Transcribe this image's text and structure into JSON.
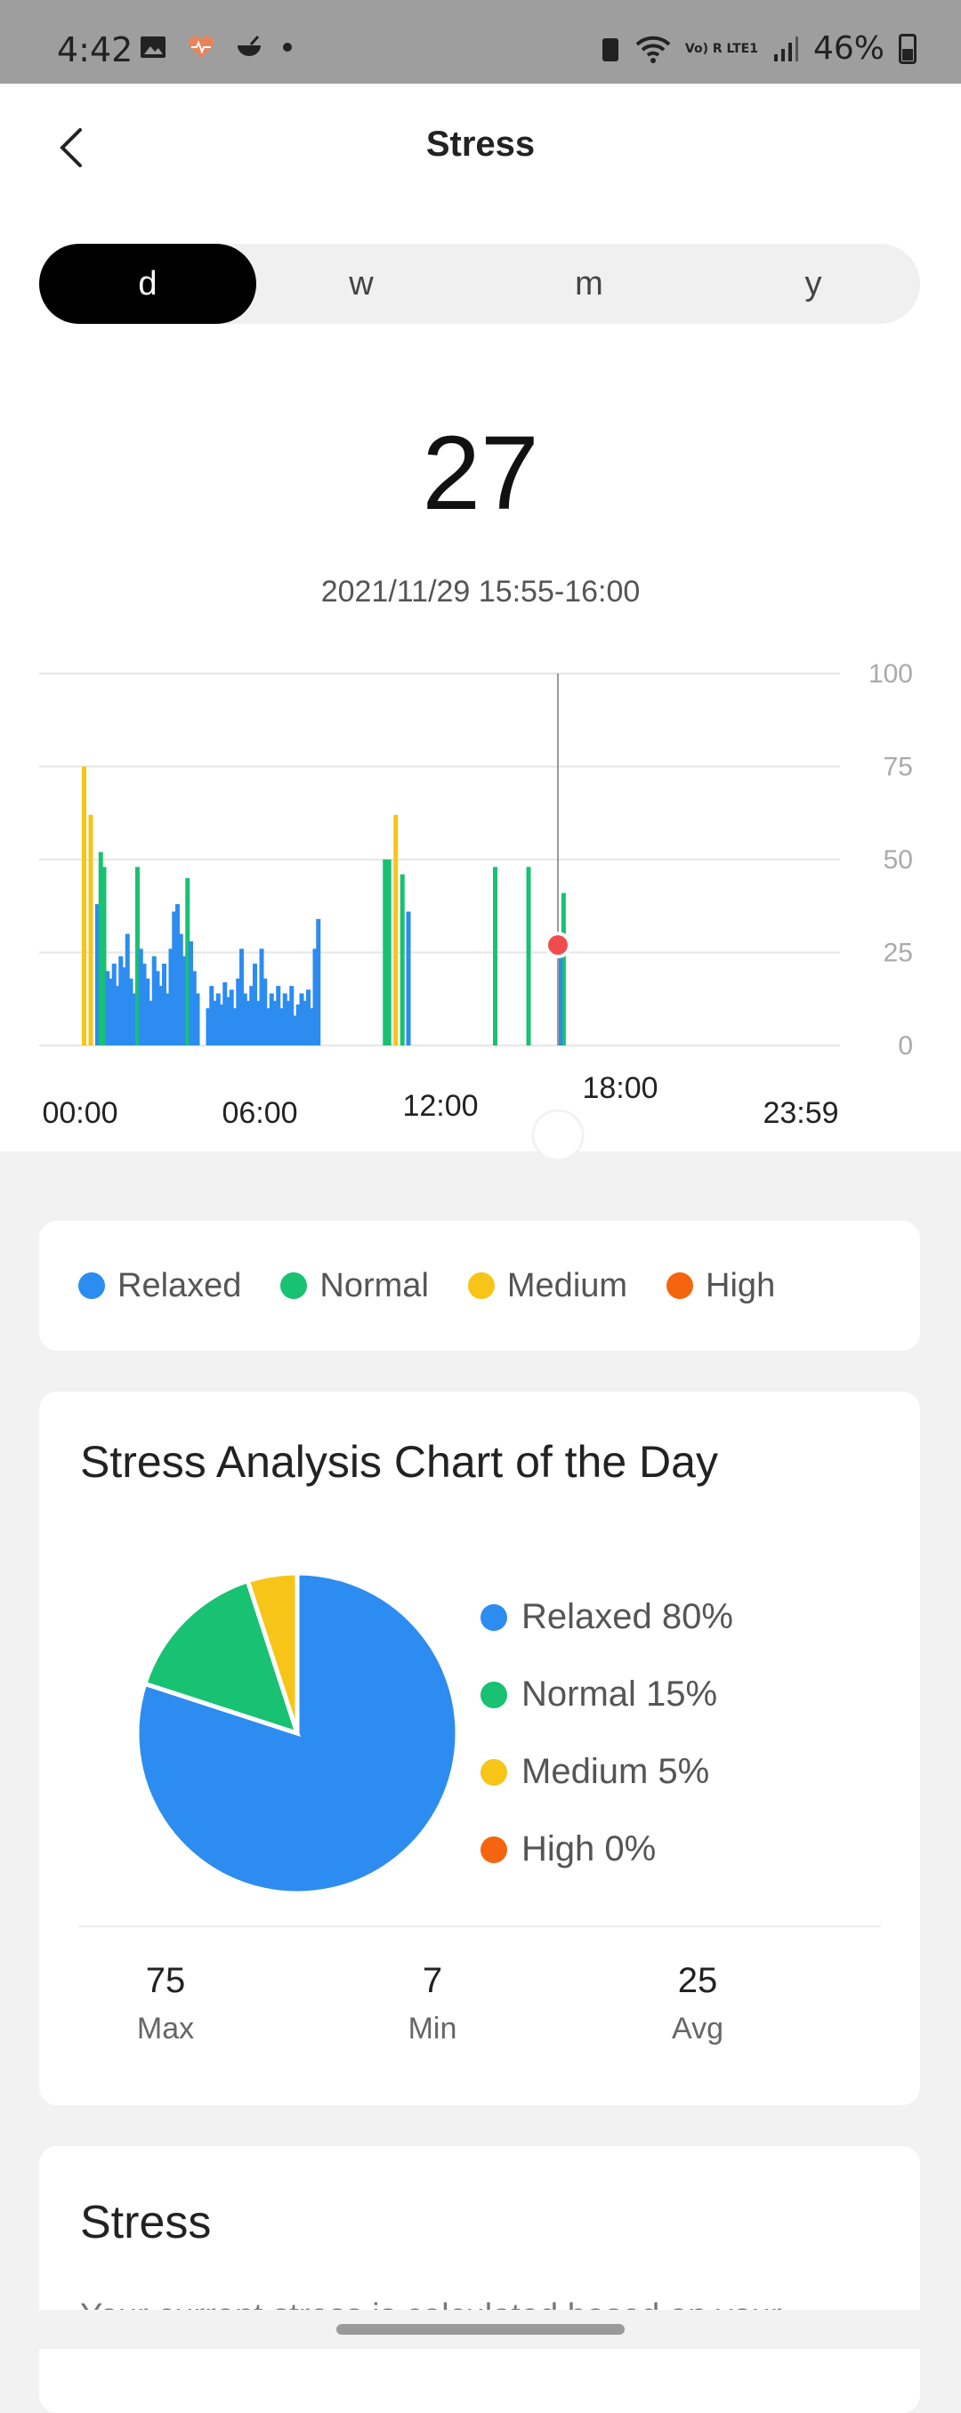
{
  "status_bar": {
    "time": "4:42",
    "network": "Vo) R LTE1",
    "battery": "46%"
  },
  "header": {
    "title": "Stress"
  },
  "tabs": [
    {
      "label": "d",
      "active": true
    },
    {
      "label": "w",
      "active": false
    },
    {
      "label": "m",
      "active": false
    },
    {
      "label": "y",
      "active": false
    }
  ],
  "current": {
    "value": "27",
    "time_range": "2021/11/29 15:55-16:00"
  },
  "chart_data": {
    "type": "bar",
    "y_ticks": [
      "100",
      "75",
      "50",
      "25",
      "0"
    ],
    "ylim": [
      0,
      100
    ],
    "x_tick_labels": [
      "00:00",
      "06:00",
      "12:00",
      "18:00",
      "23:59"
    ],
    "x_range_hours": [
      0,
      24
    ],
    "selected_point": {
      "time": "15:55",
      "value": 27
    },
    "colors": {
      "relaxed": "#2d8cf0",
      "normal": "#19c172",
      "medium": "#f7c518",
      "high": "#f5650f"
    },
    "bars": [
      {
        "t": 0.28,
        "v": 75,
        "level": "medium"
      },
      {
        "t": 0.48,
        "v": 62,
        "level": "medium"
      },
      {
        "t": 0.68,
        "v": 38,
        "level": "relaxed"
      },
      {
        "t": 0.78,
        "v": 52,
        "level": "normal"
      },
      {
        "t": 0.88,
        "v": 48,
        "level": "normal"
      },
      {
        "t": 0.98,
        "v": 20,
        "level": "relaxed"
      },
      {
        "t": 1.08,
        "v": 18,
        "level": "relaxed"
      },
      {
        "t": 1.18,
        "v": 22,
        "level": "relaxed"
      },
      {
        "t": 1.28,
        "v": 16,
        "level": "relaxed"
      },
      {
        "t": 1.38,
        "v": 24,
        "level": "relaxed"
      },
      {
        "t": 1.48,
        "v": 21,
        "level": "relaxed"
      },
      {
        "t": 1.58,
        "v": 30,
        "level": "relaxed"
      },
      {
        "t": 1.68,
        "v": 18,
        "level": "relaxed"
      },
      {
        "t": 1.78,
        "v": 14,
        "level": "relaxed"
      },
      {
        "t": 1.88,
        "v": 48,
        "level": "normal"
      },
      {
        "t": 1.98,
        "v": 26,
        "level": "relaxed"
      },
      {
        "t": 2.08,
        "v": 22,
        "level": "relaxed"
      },
      {
        "t": 2.18,
        "v": 18,
        "level": "relaxed"
      },
      {
        "t": 2.28,
        "v": 12,
        "level": "relaxed"
      },
      {
        "t": 2.38,
        "v": 24,
        "level": "relaxed"
      },
      {
        "t": 2.48,
        "v": 20,
        "level": "relaxed"
      },
      {
        "t": 2.58,
        "v": 16,
        "level": "relaxed"
      },
      {
        "t": 2.68,
        "v": 22,
        "level": "relaxed"
      },
      {
        "t": 2.78,
        "v": 14,
        "level": "relaxed"
      },
      {
        "t": 2.88,
        "v": 26,
        "level": "relaxed"
      },
      {
        "t": 2.98,
        "v": 36,
        "level": "relaxed"
      },
      {
        "t": 3.08,
        "v": 38,
        "level": "relaxed"
      },
      {
        "t": 3.18,
        "v": 30,
        "level": "relaxed"
      },
      {
        "t": 3.28,
        "v": 24,
        "level": "relaxed"
      },
      {
        "t": 3.38,
        "v": 45,
        "level": "normal"
      },
      {
        "t": 3.48,
        "v": 28,
        "level": "relaxed"
      },
      {
        "t": 3.58,
        "v": 20,
        "level": "relaxed"
      },
      {
        "t": 3.68,
        "v": 14,
        "level": "relaxed"
      },
      {
        "t": 4.0,
        "v": 10,
        "level": "relaxed"
      },
      {
        "t": 4.1,
        "v": 16,
        "level": "relaxed"
      },
      {
        "t": 4.2,
        "v": 12,
        "level": "relaxed"
      },
      {
        "t": 4.3,
        "v": 14,
        "level": "relaxed"
      },
      {
        "t": 4.4,
        "v": 11,
        "level": "relaxed"
      },
      {
        "t": 4.5,
        "v": 17,
        "level": "relaxed"
      },
      {
        "t": 4.6,
        "v": 13,
        "level": "relaxed"
      },
      {
        "t": 4.7,
        "v": 15,
        "level": "relaxed"
      },
      {
        "t": 4.8,
        "v": 10,
        "level": "relaxed"
      },
      {
        "t": 4.9,
        "v": 18,
        "level": "relaxed"
      },
      {
        "t": 5.0,
        "v": 26,
        "level": "relaxed"
      },
      {
        "t": 5.1,
        "v": 14,
        "level": "relaxed"
      },
      {
        "t": 5.2,
        "v": 12,
        "level": "relaxed"
      },
      {
        "t": 5.3,
        "v": 16,
        "level": "relaxed"
      },
      {
        "t": 5.4,
        "v": 22,
        "level": "relaxed"
      },
      {
        "t": 5.5,
        "v": 12,
        "level": "relaxed"
      },
      {
        "t": 5.6,
        "v": 26,
        "level": "relaxed"
      },
      {
        "t": 5.7,
        "v": 18,
        "level": "relaxed"
      },
      {
        "t": 5.8,
        "v": 10,
        "level": "relaxed"
      },
      {
        "t": 5.9,
        "v": 14,
        "level": "relaxed"
      },
      {
        "t": 6.0,
        "v": 12,
        "level": "relaxed"
      },
      {
        "t": 6.1,
        "v": 16,
        "level": "relaxed"
      },
      {
        "t": 6.2,
        "v": 10,
        "level": "relaxed"
      },
      {
        "t": 6.3,
        "v": 14,
        "level": "relaxed"
      },
      {
        "t": 6.4,
        "v": 12,
        "level": "relaxed"
      },
      {
        "t": 6.5,
        "v": 16,
        "level": "relaxed"
      },
      {
        "t": 6.6,
        "v": 8,
        "level": "relaxed"
      },
      {
        "t": 6.7,
        "v": 11,
        "level": "relaxed"
      },
      {
        "t": 6.8,
        "v": 14,
        "level": "relaxed"
      },
      {
        "t": 6.9,
        "v": 12,
        "level": "relaxed"
      },
      {
        "t": 7.0,
        "v": 15,
        "level": "relaxed"
      },
      {
        "t": 7.1,
        "v": 10,
        "level": "relaxed"
      },
      {
        "t": 7.2,
        "v": 26,
        "level": "relaxed"
      },
      {
        "t": 7.3,
        "v": 34,
        "level": "relaxed"
      },
      {
        "t": 9.3,
        "v": 50,
        "level": "normal"
      },
      {
        "t": 9.42,
        "v": 50,
        "level": "normal"
      },
      {
        "t": 9.62,
        "v": 62,
        "level": "medium"
      },
      {
        "t": 9.82,
        "v": 46,
        "level": "normal"
      },
      {
        "t": 10.0,
        "v": 36,
        "level": "relaxed"
      },
      {
        "t": 12.6,
        "v": 48,
        "level": "normal"
      },
      {
        "t": 13.6,
        "v": 48,
        "level": "normal"
      },
      {
        "t": 14.65,
        "v": 41,
        "level": "normal"
      },
      {
        "t": 14.55,
        "v": 27,
        "level": "relaxed"
      }
    ]
  },
  "legend": [
    {
      "label": "Relaxed",
      "color": "#2d8cf0"
    },
    {
      "label": "Normal",
      "color": "#19c172"
    },
    {
      "label": "Medium",
      "color": "#f7c518"
    },
    {
      "label": "High",
      "color": "#f5650f"
    }
  ],
  "analysis": {
    "title": "Stress Analysis Chart of the Day",
    "pie": [
      {
        "label": "Relaxed 80%",
        "value": 80,
        "color": "#2d8cf0"
      },
      {
        "label": "Normal 15%",
        "value": 15,
        "color": "#19c172"
      },
      {
        "label": "Medium 5%",
        "value": 5,
        "color": "#f7c518"
      },
      {
        "label": "High 0%",
        "value": 0,
        "color": "#f5650f"
      }
    ],
    "stats": [
      {
        "value": "75",
        "label": "Max"
      },
      {
        "value": "7",
        "label": "Min"
      },
      {
        "value": "25",
        "label": "Avg"
      }
    ]
  },
  "stress_section": {
    "title": "Stress",
    "description": "Your current stress is calculated based on your"
  }
}
